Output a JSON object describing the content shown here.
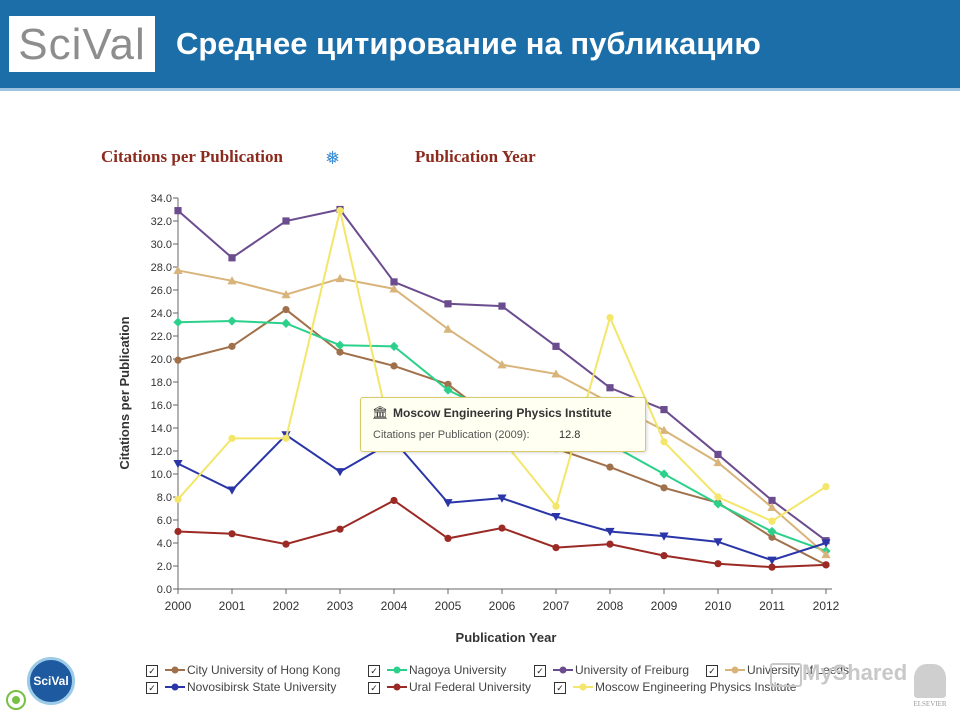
{
  "header": {
    "logo": "SciVal",
    "title": "Среднее цитирование на публикацию"
  },
  "panel": {
    "metric_label": "Citations per Publication",
    "settings_icon": "gear-icon",
    "grouping_label": "Publication Year"
  },
  "tooltip": {
    "icon": "institution-icon",
    "name": "Moscow Engineering Physics Institute",
    "label": "Citations per Publication (2009):",
    "value": "12.8"
  },
  "badge": {
    "label": "SciVal"
  },
  "watermark": {
    "text": "MyShared",
    "publisher": "ELSEVIER"
  },
  "chart_data": {
    "type": "line",
    "xlabel": "Publication Year",
    "ylabel": "Citations per Publication",
    "x": [
      "2000",
      "2001",
      "2002",
      "2003",
      "2004",
      "2005",
      "2006",
      "2007",
      "2008",
      "2009",
      "2010",
      "2011",
      "2012"
    ],
    "ylim": [
      0,
      34
    ],
    "yticks": [
      "0.0",
      "2.0",
      "4.0",
      "6.0",
      "8.0",
      "10.0",
      "12.0",
      "14.0",
      "16.0",
      "18.0",
      "20.0",
      "22.0",
      "24.0",
      "26.0",
      "28.0",
      "30.0",
      "32.0",
      "34.0"
    ],
    "grid": false,
    "legend_position": "bottom",
    "series": [
      {
        "name": "City University of Hong Kong",
        "color": "#a0704a",
        "marker": "circle",
        "values": [
          19.9,
          21.1,
          24.3,
          20.6,
          19.4,
          17.8,
          14.2,
          12.2,
          10.6,
          8.8,
          7.5,
          4.5,
          2.1
        ]
      },
      {
        "name": "Nagoya University",
        "color": "#2bd18a",
        "marker": "diamond",
        "values": [
          23.2,
          23.3,
          23.1,
          21.2,
          21.1,
          17.3,
          15.0,
          13.6,
          12.6,
          10.0,
          7.4,
          5.0,
          3.3
        ]
      },
      {
        "name": "University of Freiburg",
        "color": "#6b4c8e",
        "marker": "square",
        "values": [
          32.9,
          28.8,
          32.0,
          33.0,
          26.7,
          24.8,
          24.6,
          21.1,
          17.5,
          15.6,
          11.7,
          7.7,
          4.2
        ]
      },
      {
        "name": "University of Leeds",
        "color": "#d9b47a",
        "marker": "triangle",
        "values": [
          27.7,
          26.8,
          25.6,
          27.0,
          26.1,
          22.6,
          19.5,
          18.7,
          16.2,
          13.8,
          11.0,
          7.1,
          3.0
        ]
      },
      {
        "name": "Novosibirsk State University",
        "color": "#2a35a8",
        "marker": "triangle-down",
        "values": [
          10.9,
          8.6,
          13.4,
          10.2,
          12.9,
          7.5,
          7.9,
          6.3,
          5.0,
          4.6,
          4.1,
          2.5,
          4.0
        ]
      },
      {
        "name": "Ural Federal University",
        "color": "#9b2a25",
        "marker": "circle",
        "values": [
          5.0,
          4.8,
          3.9,
          5.2,
          7.7,
          4.4,
          5.3,
          3.6,
          3.9,
          2.9,
          2.2,
          1.9,
          2.1
        ]
      },
      {
        "name": "Moscow Engineering Physics Institute",
        "color": "#f3e66a",
        "marker": "circle",
        "values": [
          7.8,
          13.1,
          13.1,
          32.9,
          12.2,
          14.0,
          13.0,
          7.2,
          23.6,
          12.8,
          8.0,
          5.9,
          8.9
        ]
      }
    ]
  }
}
